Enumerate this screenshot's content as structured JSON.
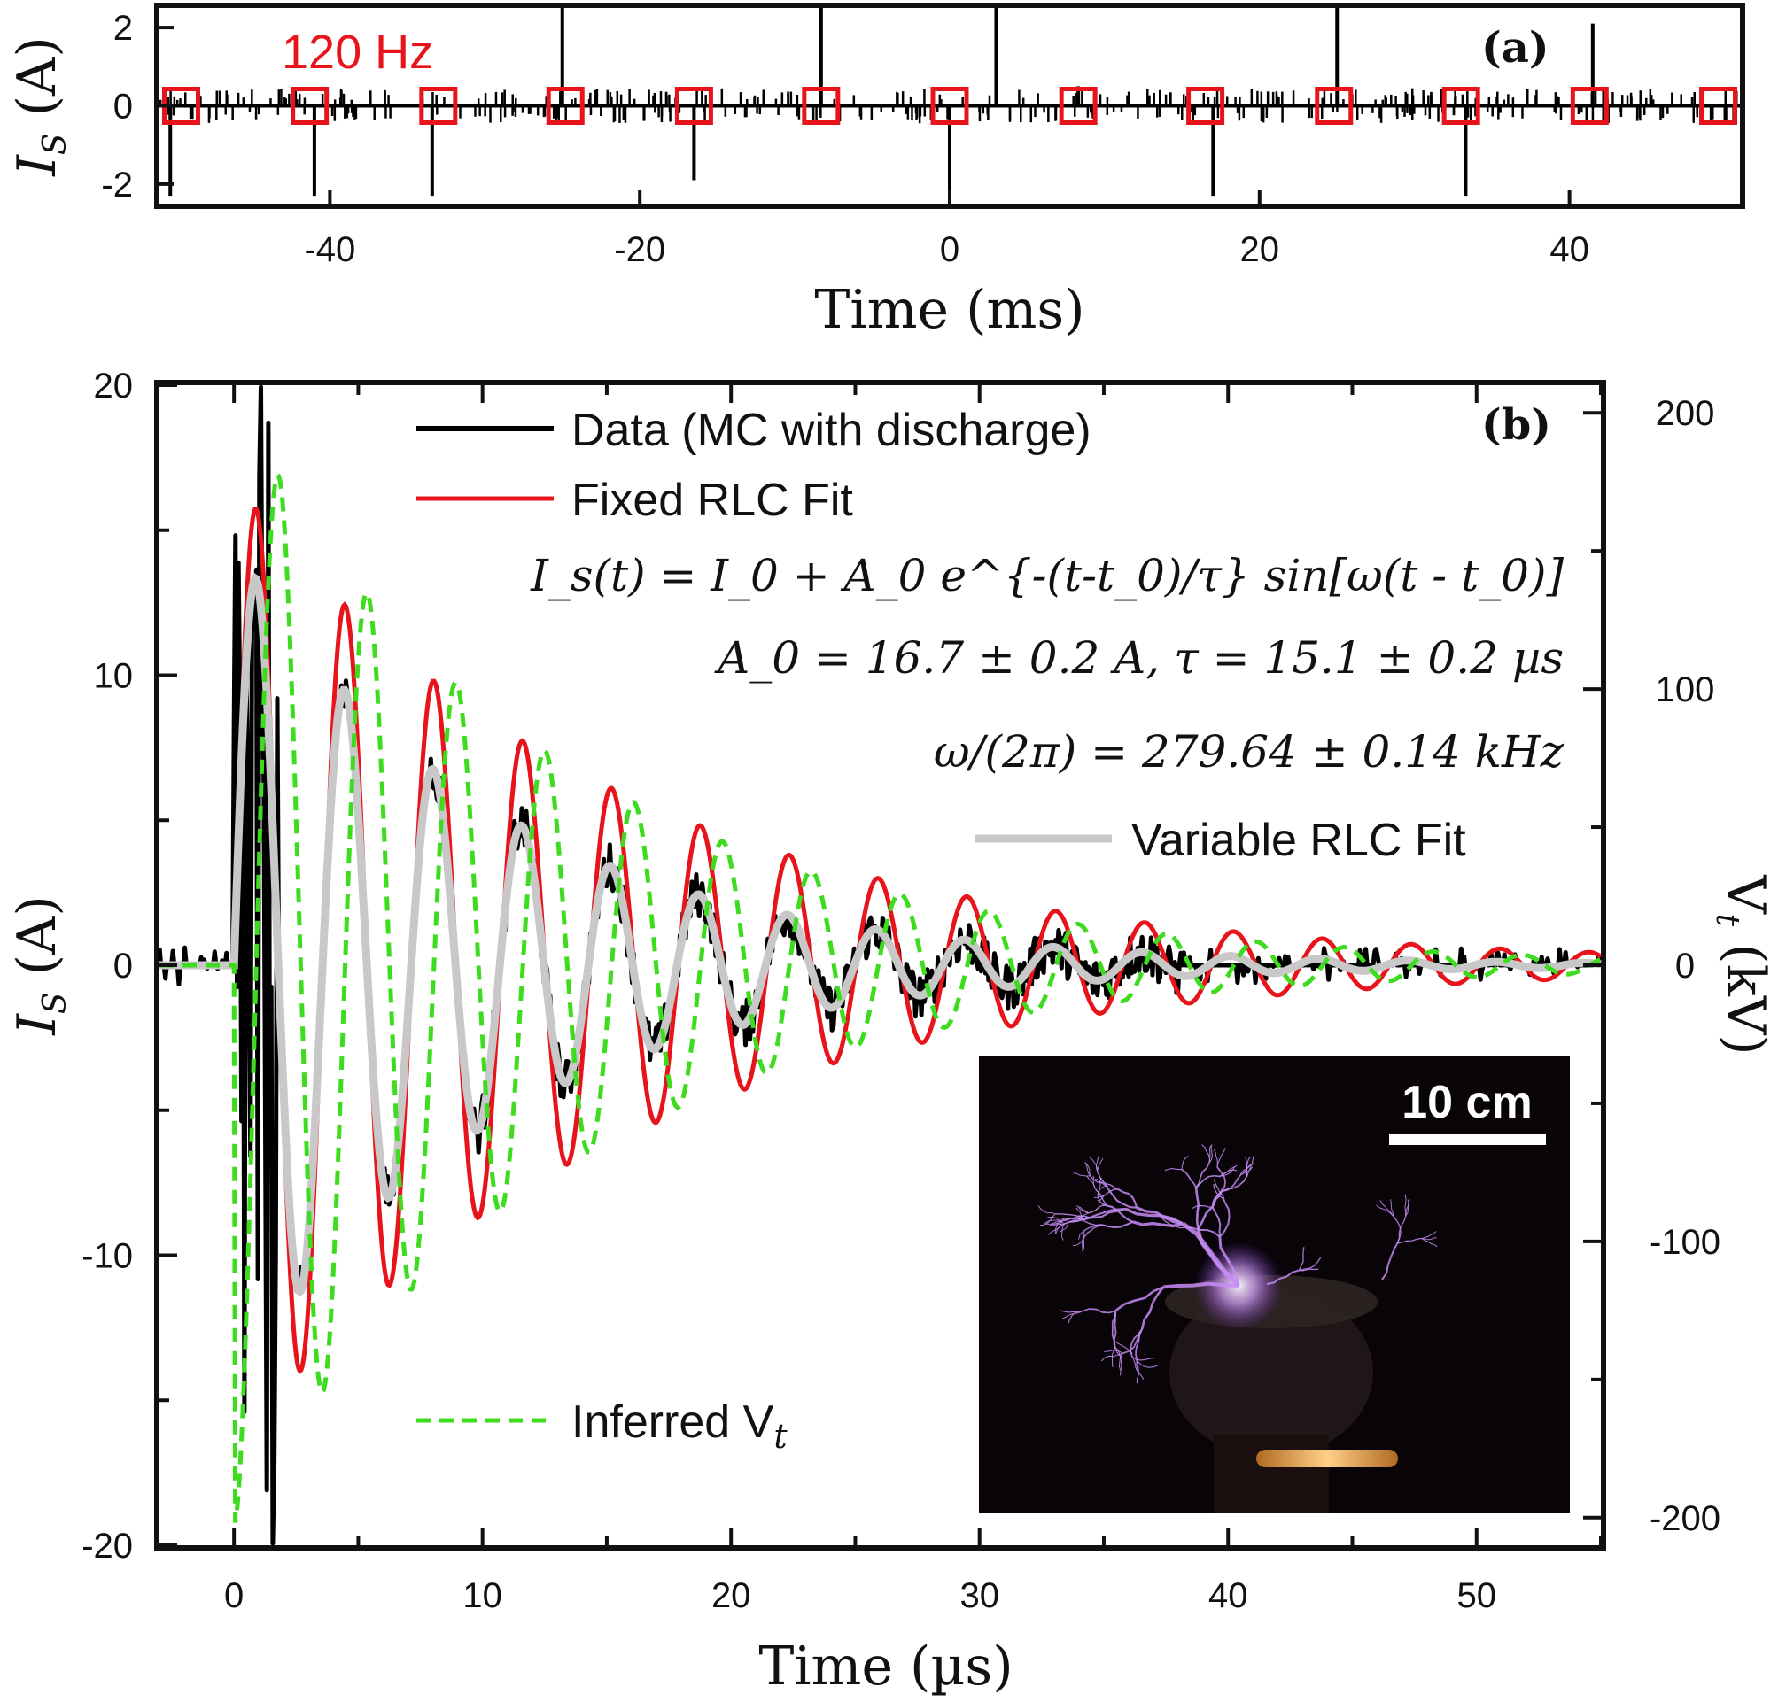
{
  "panel_a": {
    "label": "(a)",
    "annotation": "120 Hz",
    "xlabel": "Time (ms)",
    "ylabel": "I_S (A)"
  },
  "panel_b": {
    "label": "(b)",
    "xlabel": "Time (µs)",
    "ylabel_left": "I_S (A)",
    "ylabel_right": "V_t (kV)",
    "legend": [
      {
        "label": "Data (MC with discharge)",
        "color": "#000000",
        "style": "solid"
      },
      {
        "label": "Fixed RLC Fit",
        "color": "#e8141b",
        "style": "solid"
      },
      {
        "label": "Variable RLC Fit",
        "color": "#c8c8c8",
        "style": "solid"
      },
      {
        "label": "Inferred V_t",
        "color": "#3ddc1e",
        "style": "dashed"
      }
    ],
    "equations": [
      "I_s(t) = I_0 + A_0 e^{-(t-t_0)/τ} sin[ω(t - t_0)]",
      "A_0 = 16.7 ± 0.2 A, τ = 15.1 ± 0.2 µs",
      "ω/(2π) = 279.64 ± 0.14 kHz"
    ],
    "inset": {
      "scale_bar": "10 cm",
      "background": "#080408",
      "arc_color": "#c58cf5"
    }
  },
  "chart_data": [
    {
      "type": "line",
      "title": "",
      "xlabel": "Time (ms)",
      "ylabel": "I_S (A)",
      "xlim": [
        -51,
        51
      ],
      "ylim": [
        -2.5,
        2.5
      ],
      "xticks": [
        -40,
        -20,
        0,
        20,
        40
      ],
      "yticks": [
        -2,
        0,
        2
      ],
      "grid": false,
      "series": [
        {
          "name": "",
          "style": "spikes",
          "color": "#000000",
          "x": [
            -50.3,
            -41.0,
            -33.4,
            -25.0,
            -16.5,
            -8.3,
            0.0,
            3.0,
            8.3,
            17.0,
            25.0,
            33.3,
            41.5
          ],
          "values": [
            -2.3,
            -2.3,
            -2.3,
            2.5,
            -1.9,
            2.5,
            -2.3,
            2.5,
            0.5,
            -2.3,
            2.5,
            -2.3,
            2.1
          ]
        },
        {
          "name": "120 Hz",
          "style": "markers",
          "color": "#e8141b",
          "x": [
            -49.6,
            -41.3,
            -33.0,
            -24.8,
            -16.5,
            -8.3,
            0.0,
            8.3,
            16.5,
            24.8,
            33.0,
            41.3,
            49.6
          ],
          "values": [
            0,
            0,
            0,
            0,
            0,
            0,
            0,
            0,
            0,
            0,
            0,
            0,
            0
          ]
        }
      ]
    },
    {
      "type": "line",
      "title": "",
      "xlabel": "Time (µs)",
      "ylabel": "I_S (A)",
      "ylabel_right": "V_t (kV)",
      "xlim": [
        -3,
        55
      ],
      "ylim": [
        -20,
        20
      ],
      "ylim_right": [
        -210,
        210
      ],
      "xticks": [
        0,
        10,
        20,
        30,
        40,
        50
      ],
      "yticks": [
        -20,
        -10,
        0,
        10,
        20
      ],
      "yticks_right": [
        -200,
        -100,
        0,
        100,
        200
      ],
      "grid": false,
      "legend_position": "top-center",
      "model": {
        "A0": 16.7,
        "tau_us": 15.1,
        "freq_kHz": 279.64,
        "t0_us": 0
      },
      "series": [
        {
          "name": "Data (MC with discharge)",
          "color": "#000000",
          "kind": "noisy-decay"
        },
        {
          "name": "Fixed RLC Fit",
          "color": "#e8141b",
          "kind": "fixed-fit"
        },
        {
          "name": "Variable RLC Fit",
          "color": "#c8c8c8",
          "kind": "variable-fit"
        },
        {
          "name": "Inferred V_t",
          "color": "#3ddc1e",
          "kind": "voltage",
          "peak_kV": 180
        }
      ]
    }
  ]
}
